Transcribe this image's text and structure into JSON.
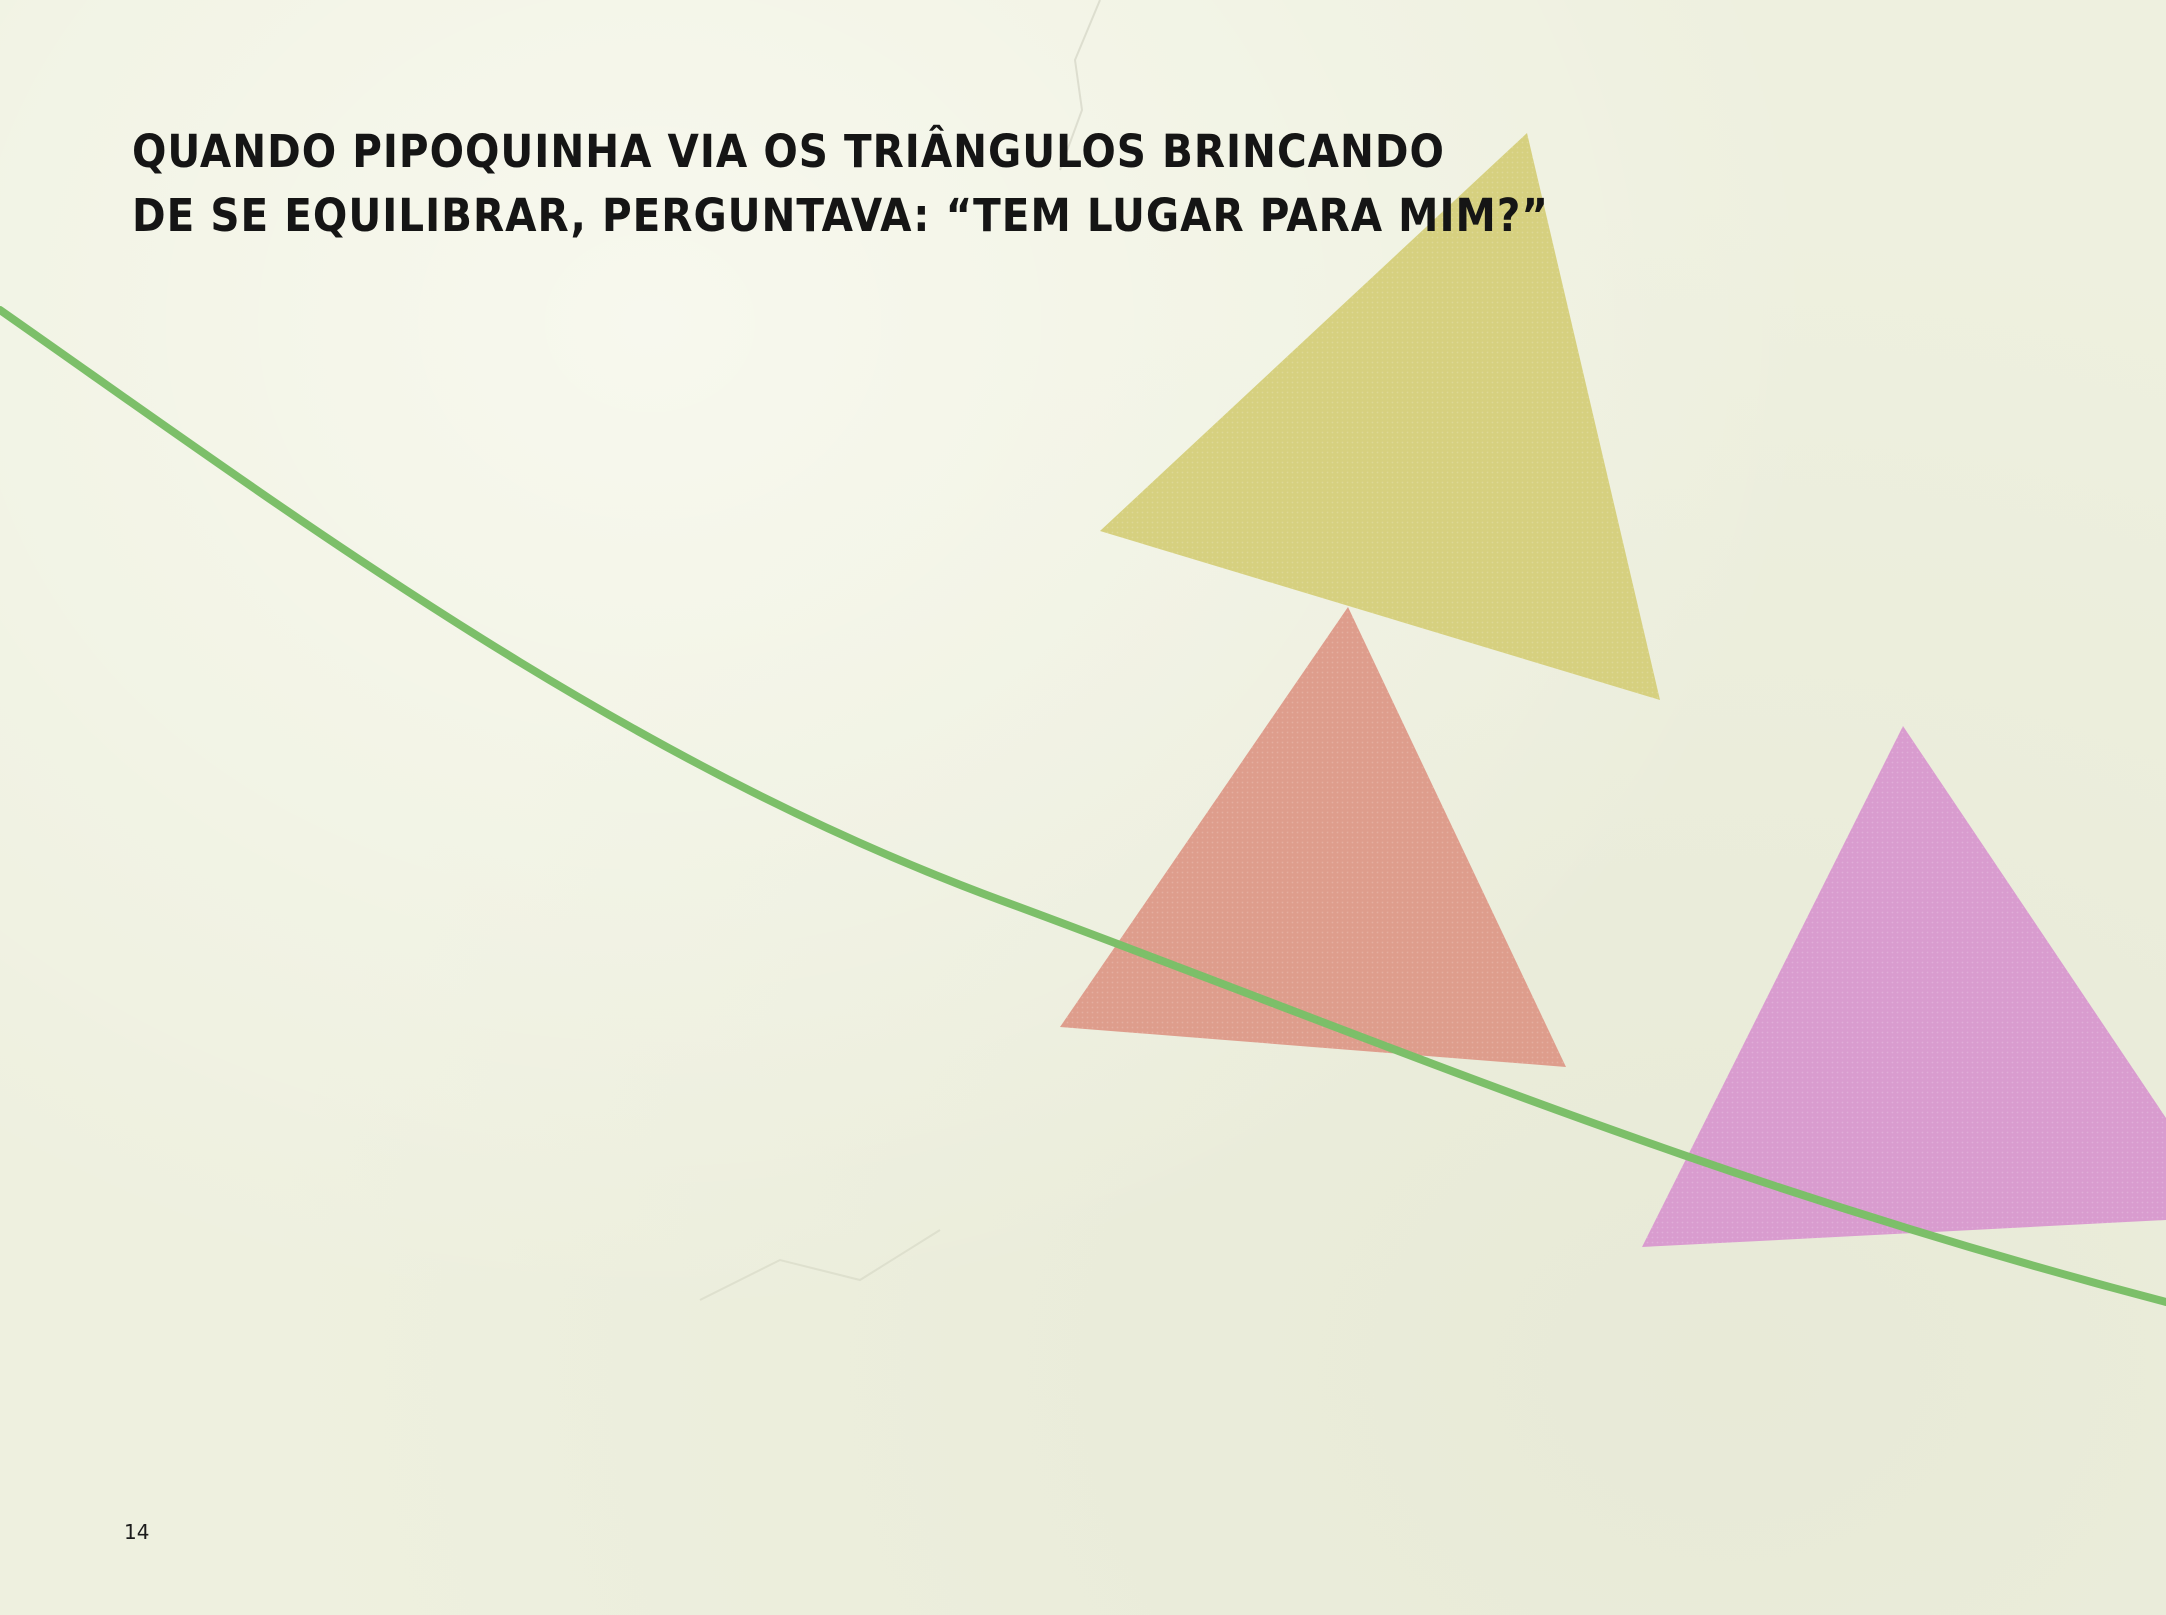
{
  "page": {
    "caption_lines": [
      "QUANDO PIPOQUINHA VIA OS TRIÂNGULOS BRINCANDO",
      "DE SE EQUILIBRAR, PERGUNTAVA: “TEM LUGAR PARA MIM?”"
    ],
    "page_number": "14"
  },
  "colors": {
    "background": "#eef0df",
    "rope": "#7cbf69",
    "triangle_yellow": "#d6d07f",
    "triangle_red": "#de9d8c",
    "triangle_pink": "#d99ccf",
    "text": "#151515"
  }
}
